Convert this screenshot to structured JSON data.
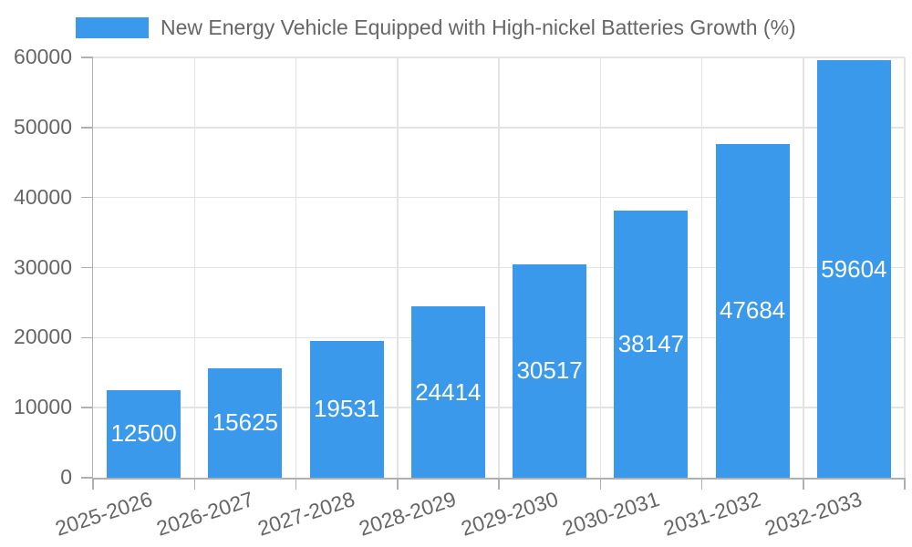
{
  "legend": {
    "position": "top-center",
    "swatch_color": "#3A99EB"
  },
  "chart_data": {
    "type": "bar",
    "title": "New Energy Vehicle Equipped with High-nickel Batteries Growth (%)",
    "categories": [
      "2025-2026",
      "2026-2027",
      "2027-2028",
      "2028-2029",
      "2029-2030",
      "2030-2031",
      "2031-2032",
      "2032-2033"
    ],
    "series": [
      {
        "name": "New Energy Vehicle Equipped with High-nickel Batteries Growth (%)",
        "values": [
          12500,
          15625,
          19531,
          24414,
          30517,
          38147,
          47684,
          59604
        ]
      }
    ],
    "bar_value_labels": [
      "12500",
      "15625",
      "19531",
      "24414",
      "30517",
      "38147",
      "47684",
      "59604"
    ],
    "xlabel": "",
    "ylabel": "",
    "ylim": [
      0,
      60000
    ],
    "ytick_step": 10000,
    "yticks": [
      0,
      10000,
      20000,
      30000,
      40000,
      50000,
      60000
    ],
    "grid": true,
    "legend_position": "top",
    "colors": {
      "bar": "#3A99EB",
      "bar_label": "#FFFFFF",
      "axis_text": "#666666",
      "axis_line": "#B0B0B0",
      "gridline": "#E3E3E3",
      "background": "#FFFFFF"
    }
  }
}
